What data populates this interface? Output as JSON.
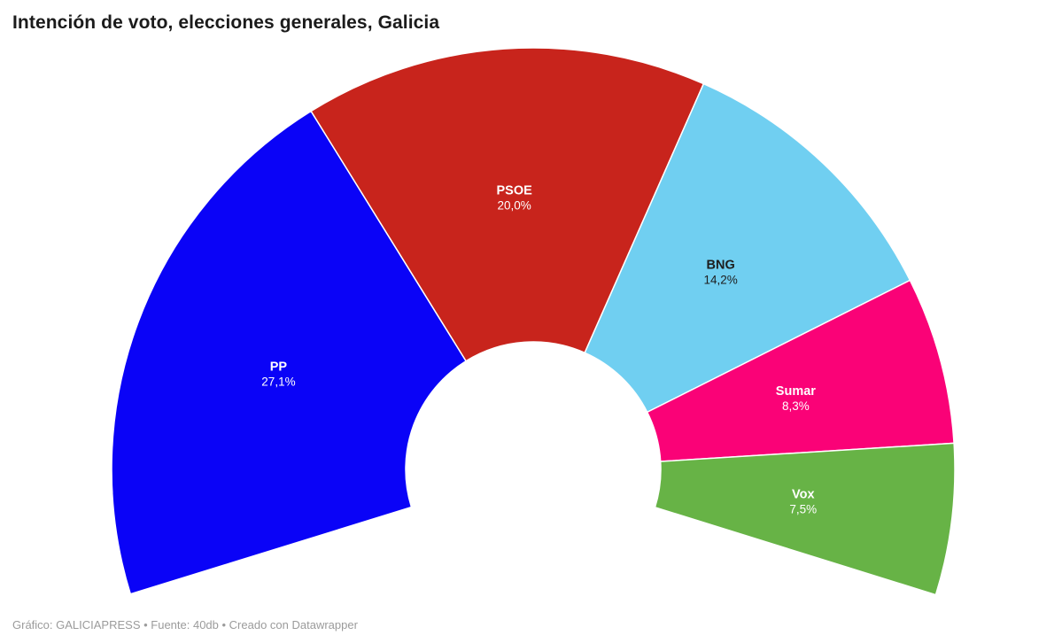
{
  "chart_data": {
    "type": "pie",
    "variant": "half-donut-hemicycle",
    "title": "Intención de voto, elecciones generales, Galicia",
    "legend": "none",
    "labels_inside": true,
    "arc_degrees": 214.5,
    "series": [
      {
        "name": "PP",
        "value": 27.1,
        "label": "27,1%",
        "color": "#0a03f7",
        "label_color": "#ffffff"
      },
      {
        "name": "PSOE",
        "value": 20.0,
        "label": "20,0%",
        "color": "#c8241c",
        "label_color": "#ffffff"
      },
      {
        "name": "BNG",
        "value": 14.2,
        "label": "14,2%",
        "color": "#70cff1",
        "label_color": "#1d1d1d"
      },
      {
        "name": "Sumar",
        "value": 8.3,
        "label": "8,3%",
        "color": "#fa0277",
        "label_color": "#ffffff"
      },
      {
        "name": "Vox",
        "value": 7.5,
        "label": "7,5%",
        "color": "#67b346",
        "label_color": "#ffffff"
      }
    ]
  },
  "footer": {
    "credit": "Gráfico: GALICIAPRESS • Fuente: 40db  • Creado con Datawrapper"
  }
}
